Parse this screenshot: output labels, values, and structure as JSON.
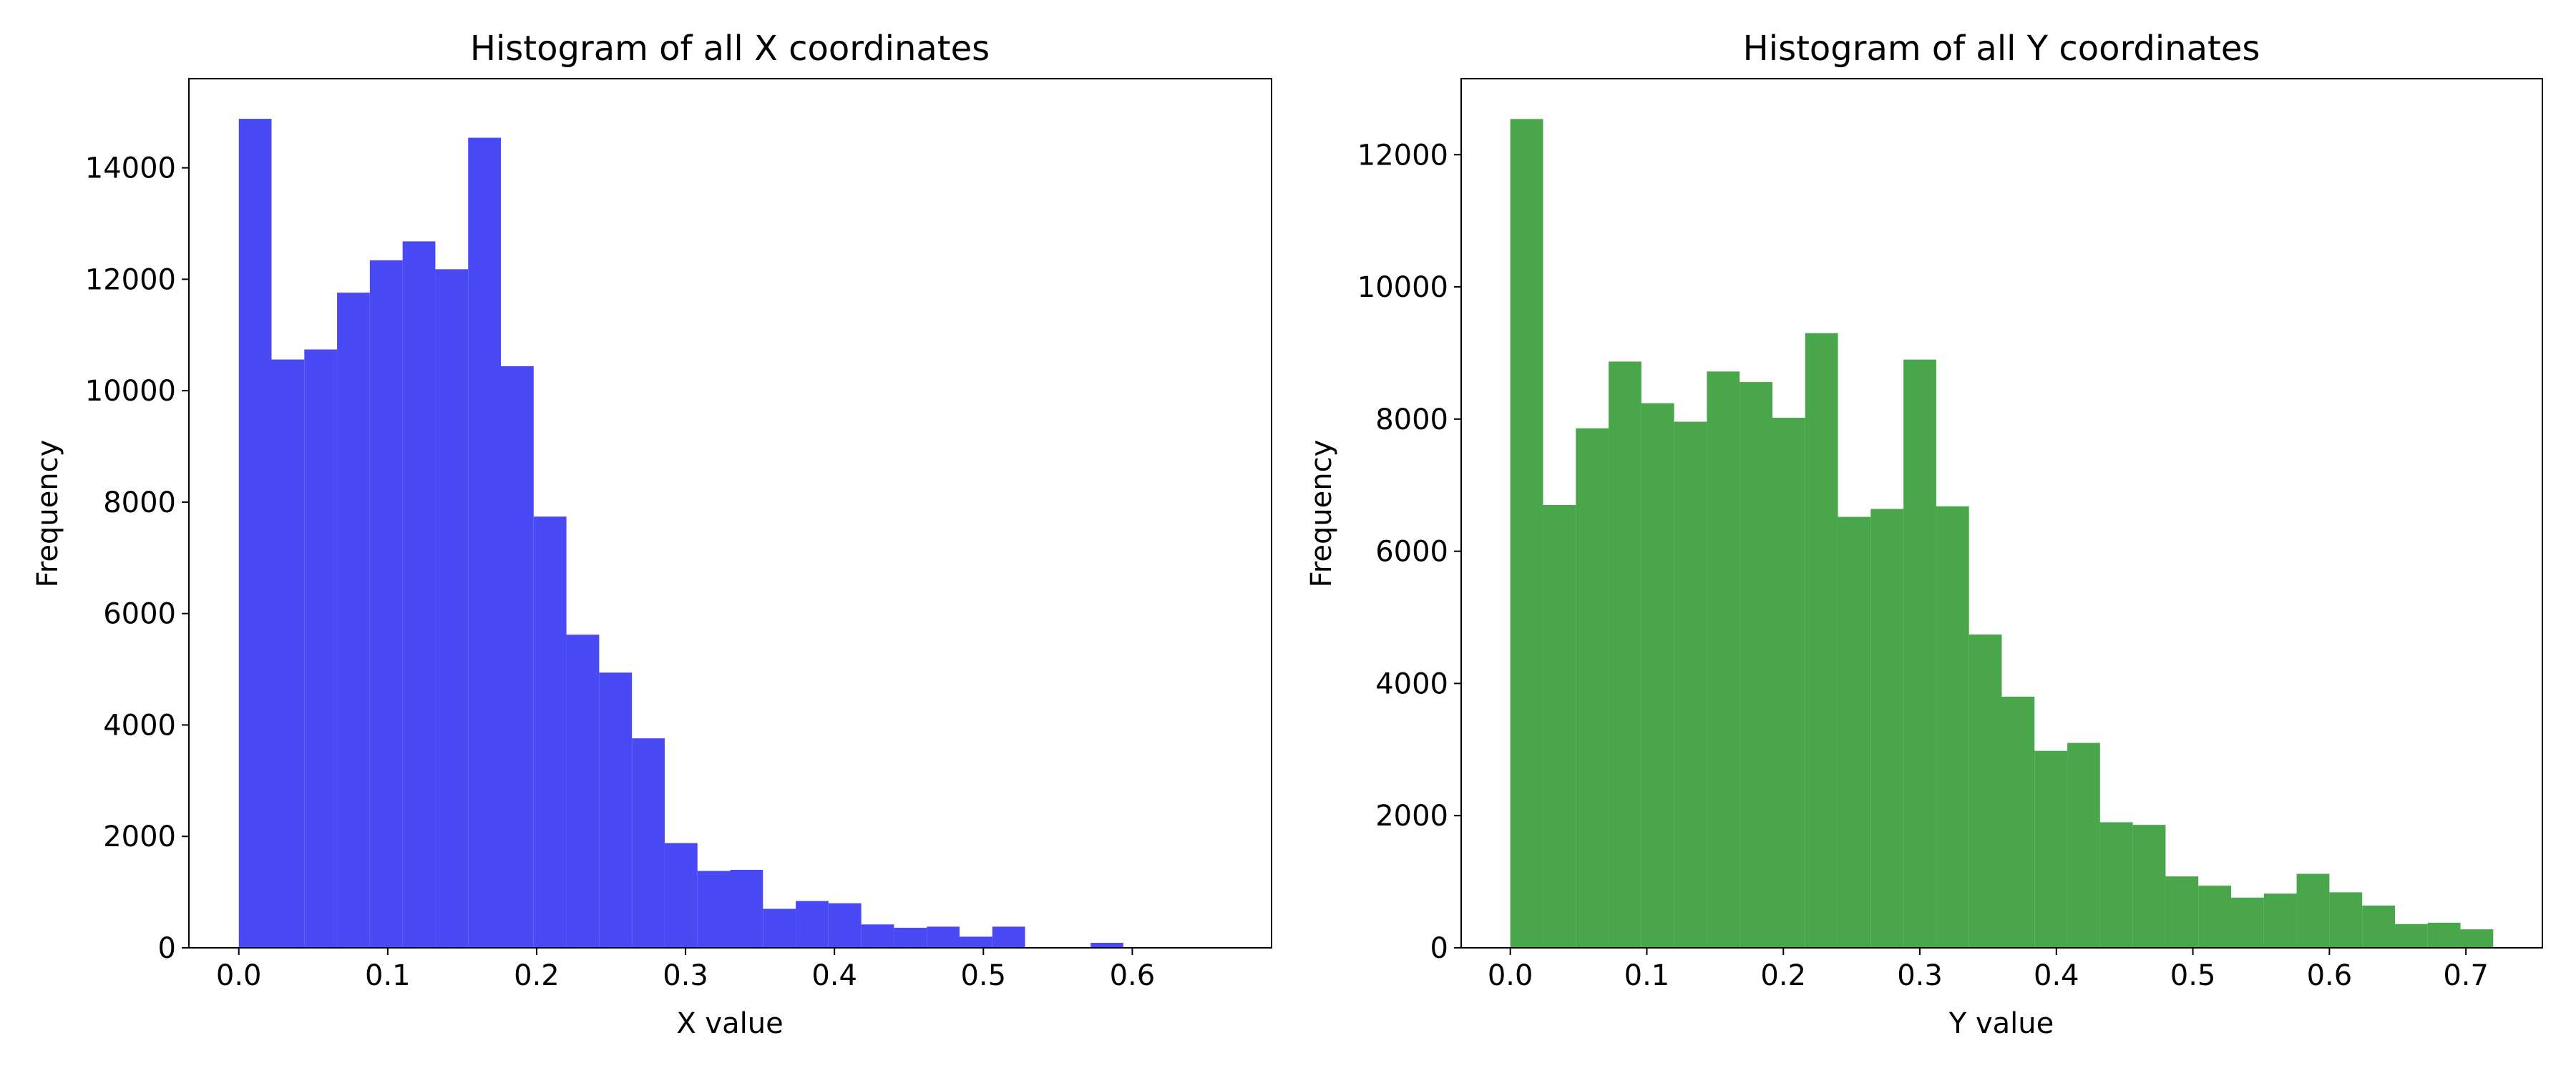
{
  "colors": {
    "x_hist": "#4a4af5",
    "y_hist": "#4aa64a"
  },
  "chart_data": [
    {
      "type": "bar",
      "title": "Histogram of all X coordinates",
      "xlabel": "X value",
      "ylabel": "Frequency",
      "xlim": [
        -0.0335,
        0.6935
      ],
      "ylim": [
        0,
        15600
      ],
      "xticks": [
        "0.0",
        "0.1",
        "0.2",
        "0.3",
        "0.4",
        "0.5",
        "0.6"
      ],
      "yticks": [
        "0",
        "2000",
        "4000",
        "6000",
        "8000",
        "10000",
        "12000",
        "14000"
      ],
      "bin_width": 0.022,
      "bins": [
        {
          "x0": 0.0,
          "value": 14880
        },
        {
          "x0": 0.022,
          "value": 10560
        },
        {
          "x0": 0.044,
          "value": 10740
        },
        {
          "x0": 0.066,
          "value": 11760
        },
        {
          "x0": 0.088,
          "value": 12340
        },
        {
          "x0": 0.11,
          "value": 12680
        },
        {
          "x0": 0.132,
          "value": 12180
        },
        {
          "x0": 0.154,
          "value": 14540
        },
        {
          "x0": 0.176,
          "value": 10440
        },
        {
          "x0": 0.198,
          "value": 7740
        },
        {
          "x0": 0.22,
          "value": 5620
        },
        {
          "x0": 0.242,
          "value": 4940
        },
        {
          "x0": 0.264,
          "value": 3760
        },
        {
          "x0": 0.286,
          "value": 1880
        },
        {
          "x0": 0.308,
          "value": 1380
        },
        {
          "x0": 0.33,
          "value": 1400
        },
        {
          "x0": 0.352,
          "value": 700
        },
        {
          "x0": 0.374,
          "value": 840
        },
        {
          "x0": 0.396,
          "value": 800
        },
        {
          "x0": 0.418,
          "value": 420
        },
        {
          "x0": 0.44,
          "value": 360
        },
        {
          "x0": 0.462,
          "value": 380
        },
        {
          "x0": 0.484,
          "value": 200
        },
        {
          "x0": 0.506,
          "value": 380
        },
        {
          "x0": 0.528,
          "value": 0
        },
        {
          "x0": 0.55,
          "value": 0
        },
        {
          "x0": 0.572,
          "value": 90
        },
        {
          "x0": 0.594,
          "value": 0
        },
        {
          "x0": 0.616,
          "value": 0
        },
        {
          "x0": 0.638,
          "value": 0
        }
      ],
      "grid": false
    },
    {
      "type": "bar",
      "title": "Histogram of all Y coordinates",
      "xlabel": "Y value",
      "ylabel": "Frequency",
      "xlim": [
        -0.036,
        0.756
      ],
      "ylim": [
        0,
        13150
      ],
      "xticks": [
        "0.0",
        "0.1",
        "0.2",
        "0.3",
        "0.4",
        "0.5",
        "0.6",
        "0.7"
      ],
      "yticks": [
        "0",
        "2000",
        "4000",
        "6000",
        "8000",
        "10000",
        "12000"
      ],
      "bin_width": 0.024,
      "bins": [
        {
          "x0": 0.0,
          "value": 12540
        },
        {
          "x0": 0.024,
          "value": 6700
        },
        {
          "x0": 0.048,
          "value": 7860
        },
        {
          "x0": 0.072,
          "value": 8870
        },
        {
          "x0": 0.096,
          "value": 8240
        },
        {
          "x0": 0.12,
          "value": 7960
        },
        {
          "x0": 0.144,
          "value": 8720
        },
        {
          "x0": 0.168,
          "value": 8560
        },
        {
          "x0": 0.192,
          "value": 8020
        },
        {
          "x0": 0.216,
          "value": 9300
        },
        {
          "x0": 0.24,
          "value": 6520
        },
        {
          "x0": 0.264,
          "value": 6640
        },
        {
          "x0": 0.288,
          "value": 8900
        },
        {
          "x0": 0.312,
          "value": 6680
        },
        {
          "x0": 0.336,
          "value": 4740
        },
        {
          "x0": 0.36,
          "value": 3800
        },
        {
          "x0": 0.384,
          "value": 2980
        },
        {
          "x0": 0.408,
          "value": 3100
        },
        {
          "x0": 0.432,
          "value": 1900
        },
        {
          "x0": 0.456,
          "value": 1860
        },
        {
          "x0": 0.48,
          "value": 1080
        },
        {
          "x0": 0.504,
          "value": 940
        },
        {
          "x0": 0.528,
          "value": 760
        },
        {
          "x0": 0.552,
          "value": 820
        },
        {
          "x0": 0.576,
          "value": 1120
        },
        {
          "x0": 0.6,
          "value": 840
        },
        {
          "x0": 0.624,
          "value": 640
        },
        {
          "x0": 0.648,
          "value": 360
        },
        {
          "x0": 0.672,
          "value": 380
        },
        {
          "x0": 0.696,
          "value": 280
        }
      ],
      "grid": false
    }
  ]
}
